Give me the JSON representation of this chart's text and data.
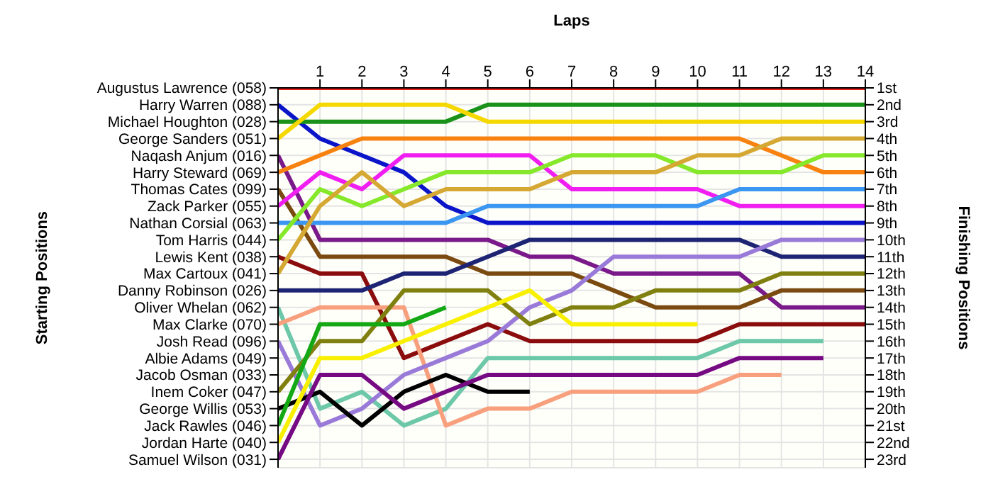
{
  "chart_data": {
    "type": "line",
    "xlabel": "Laps",
    "annotations": [
      "Starting Positions"
    ],
    "y2label": "Finishing Positions",
    "grid": true,
    "x": [
      0,
      1,
      2,
      3,
      4,
      5,
      6,
      7,
      8,
      9,
      10,
      11,
      12,
      13,
      14
    ],
    "xlim": [
      0,
      14
    ],
    "xticks": [
      1,
      2,
      3,
      4,
      5,
      6,
      7,
      8,
      9,
      10,
      11,
      12,
      13,
      14
    ],
    "y_categories": [
      "Augustus Lawrence (058)",
      "Harry Warren (088)",
      "Michael Houghton (028)",
      "George Sanders (051)",
      "Naqash Anjum (016)",
      "Harry Steward (069)",
      "Thomas Cates (099)",
      "Zack Parker (055)",
      "Nathan Corsial (063)",
      "Tom Harris (044)",
      "Lewis Kent (038)",
      "Max Cartoux (041)",
      "Danny Robinson (026)",
      "Oliver Whelan (062)",
      "Max Clarke (070)",
      "Josh Read (096)",
      "Albie Adams (049)",
      "Jacob Osman (033)",
      "Inem Coker (047)",
      "George Willis (053)",
      "Jack Rawles (046)",
      "Jordan Harte (040)",
      "Samuel Wilson (031)"
    ],
    "y2lim": [
      23.5,
      1
    ],
    "y2ticks": [
      {
        "value": 1,
        "label": "1st"
      },
      {
        "value": 2,
        "label": "2nd"
      },
      {
        "value": 3,
        "label": "3rd"
      },
      {
        "value": 4,
        "label": "4th"
      },
      {
        "value": 5,
        "label": "5th"
      },
      {
        "value": 6,
        "label": "6th"
      },
      {
        "value": 7,
        "label": "7th"
      },
      {
        "value": 8,
        "label": "8th"
      },
      {
        "value": 9,
        "label": "9th"
      },
      {
        "value": 10,
        "label": "10th"
      },
      {
        "value": 11,
        "label": "11th"
      },
      {
        "value": 12,
        "label": "12th"
      },
      {
        "value": 13,
        "label": "13th"
      },
      {
        "value": 14,
        "label": "14th"
      },
      {
        "value": 15,
        "label": "15th"
      },
      {
        "value": 16,
        "label": "16th"
      },
      {
        "value": 17,
        "label": "17th"
      },
      {
        "value": 18,
        "label": "18th"
      },
      {
        "value": 19,
        "label": "19th"
      },
      {
        "value": 20,
        "label": "20th"
      },
      {
        "value": 21,
        "label": "21st"
      },
      {
        "value": 22,
        "label": "22nd"
      },
      {
        "value": 23,
        "label": "23rd"
      }
    ],
    "series": [
      {
        "axis": "y2",
        "color": "#e8201c",
        "values": [
          1,
          1,
          1,
          1,
          1,
          1,
          1,
          1,
          1,
          1,
          1,
          1,
          1,
          1,
          1
        ]
      },
      {
        "axis": "y2",
        "color": "#0a14c8",
        "values": [
          2,
          4,
          5,
          6,
          8,
          9,
          9,
          9,
          9,
          9,
          9,
          9,
          9,
          9,
          9
        ]
      },
      {
        "axis": "y2",
        "color": "#1a921a",
        "values": [
          3,
          3,
          3,
          3,
          3,
          2,
          2,
          2,
          2,
          2,
          2,
          2,
          2,
          2,
          2
        ]
      },
      {
        "axis": "y2",
        "color": "#f5d800",
        "values": [
          4,
          2,
          2,
          2,
          2,
          3,
          3,
          3,
          3,
          3,
          3,
          3,
          3,
          3,
          3
        ]
      },
      {
        "axis": "y2",
        "color": "#7a1a8a",
        "values": [
          5,
          10,
          10,
          10,
          10,
          10,
          11,
          11,
          12,
          12,
          12,
          12,
          14,
          14,
          14
        ]
      },
      {
        "axis": "y2",
        "color": "#f7820f",
        "values": [
          6,
          5,
          4,
          4,
          4,
          4,
          4,
          4,
          4,
          4,
          4,
          4,
          5,
          6,
          6
        ]
      },
      {
        "axis": "y2",
        "color": "#7a4a10",
        "values": [
          7,
          11,
          11,
          11,
          11,
          12,
          12,
          12,
          13,
          14,
          14,
          14,
          13,
          13,
          13
        ]
      },
      {
        "axis": "y2",
        "color": "#f01ef0",
        "values": [
          8,
          6,
          7,
          5,
          5,
          5,
          5,
          7,
          7,
          7,
          7,
          8,
          8,
          8,
          8
        ]
      },
      {
        "axis": "y2",
        "color": "#3a96f0",
        "values": [
          9,
          9,
          9,
          9,
          9,
          8,
          8,
          8,
          8,
          8,
          8,
          7,
          7,
          7,
          7
        ]
      },
      {
        "axis": "y2",
        "color": "#86e82a",
        "values": [
          10,
          7,
          8,
          7,
          6,
          6,
          6,
          5,
          5,
          5,
          6,
          6,
          6,
          5,
          5
        ]
      },
      {
        "axis": "y2",
        "color": "#8a0c0c",
        "values": [
          11,
          12,
          12,
          17,
          16,
          15,
          16,
          16,
          16,
          16,
          16,
          15,
          15,
          15,
          15
        ]
      },
      {
        "axis": "y2",
        "color": "#d4a832",
        "values": [
          12,
          8,
          6,
          8,
          7,
          7,
          7,
          6,
          6,
          6,
          5,
          5,
          4,
          4,
          4
        ]
      },
      {
        "axis": "y2",
        "color": "#1e2474",
        "values": [
          13,
          13,
          13,
          12,
          12,
          11,
          10,
          10,
          10,
          10,
          10,
          10,
          11,
          11,
          11
        ]
      },
      {
        "axis": "y2",
        "color": "#6cc8a8",
        "values": [
          14,
          20,
          19,
          21,
          20,
          17,
          17,
          17,
          17,
          17,
          17,
          16,
          16,
          16,
          null
        ]
      },
      {
        "axis": "y2",
        "color": "#f8a07e",
        "values": [
          15,
          14,
          14,
          14,
          21,
          20,
          20,
          19,
          19,
          19,
          19,
          18,
          18,
          null,
          null
        ]
      },
      {
        "axis": "y2",
        "color": "#9a7ad8",
        "values": [
          16,
          21,
          20,
          18,
          17,
          16,
          14,
          13,
          11,
          11,
          11,
          11,
          10,
          10,
          10
        ]
      },
      {
        "axis": "y2",
        "color": "#808010",
        "values": [
          19,
          16,
          16,
          13,
          13,
          13,
          15,
          14,
          14,
          13,
          13,
          13,
          12,
          12,
          12
        ]
      },
      {
        "axis": "y2",
        "color": "#000000",
        "values": [
          20,
          19,
          21,
          19,
          18,
          19,
          19,
          null,
          null,
          null,
          null,
          null,
          null,
          null,
          null
        ]
      },
      {
        "axis": "y2",
        "color": "#14a814",
        "values": [
          21,
          15,
          15,
          15,
          14,
          null,
          null,
          null,
          null,
          null,
          null,
          null,
          null,
          null,
          null
        ]
      },
      {
        "axis": "y2",
        "color": "#f8f000",
        "values": [
          22,
          17,
          17,
          16,
          15,
          14,
          13,
          15,
          15,
          15,
          15,
          null,
          null,
          null,
          null
        ]
      },
      {
        "axis": "y2",
        "color": "#760a82",
        "values": [
          23,
          18,
          18,
          20,
          19,
          18,
          18,
          18,
          18,
          18,
          18,
          17,
          17,
          17,
          null
        ]
      }
    ]
  }
}
